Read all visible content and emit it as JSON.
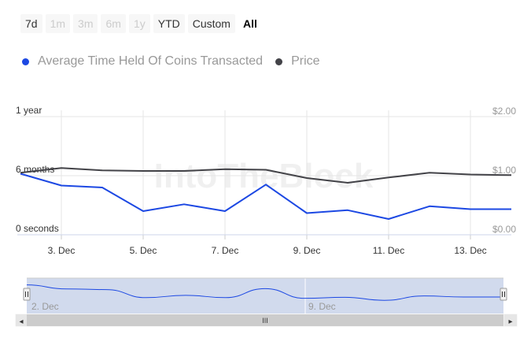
{
  "range_buttons": [
    {
      "label": "7d",
      "state": "enabled"
    },
    {
      "label": "1m",
      "state": "disabled"
    },
    {
      "label": "3m",
      "state": "disabled"
    },
    {
      "label": "6m",
      "state": "disabled"
    },
    {
      "label": "1y",
      "state": "disabled"
    },
    {
      "label": "YTD",
      "state": "enabled"
    },
    {
      "label": "Custom",
      "state": "enabled"
    },
    {
      "label": "All",
      "state": "active"
    }
  ],
  "watermark": "IntoTheBlock",
  "colors": {
    "series_blue": "#1c48e3",
    "series_dark": "#434348",
    "grid": "#e6e6e6",
    "navigator_mask": "rgba(102,133,194,0.3)"
  },
  "chart_data": {
    "type": "line",
    "title": "",
    "grid": true,
    "legend_position": "top-left",
    "x": [
      "2 Dec",
      "3 Dec",
      "4 Dec",
      "5 Dec",
      "6 Dec",
      "7 Dec",
      "8 Dec",
      "9 Dec",
      "10 Dec",
      "11 Dec",
      "12 Dec",
      "13 Dec",
      "14 Dec"
    ],
    "x_tick_labels": [
      "3. Dec",
      "5. Dec",
      "7. Dec",
      "9. Dec",
      "11. Dec",
      "13. Dec"
    ],
    "y_left_ticks": [
      "0 seconds",
      "6 months",
      "1 year"
    ],
    "y_left_range_months": [
      0,
      12
    ],
    "y_right_ticks": [
      "$0.00",
      "$1.00",
      "$2.00"
    ],
    "y_right_range_usd": [
      0,
      2
    ],
    "series": [
      {
        "name": "Average Time Held Of Coins Transacted",
        "axis": "left",
        "unit": "months",
        "values": [
          6.2,
          5.0,
          4.8,
          2.4,
          3.1,
          2.4,
          5.1,
          2.2,
          2.5,
          1.6,
          2.9,
          2.6,
          2.6
        ]
      },
      {
        "name": "Price",
        "axis": "right",
        "unit": "USD",
        "values": [
          1.05,
          1.13,
          1.09,
          1.08,
          1.08,
          1.11,
          1.1,
          0.96,
          0.88,
          0.97,
          1.05,
          1.02,
          1.01
        ]
      }
    ]
  },
  "navigator": {
    "date_labels": [
      "2. Dec",
      "9. Dec"
    ],
    "scroll_center_glyph": "III",
    "left_arrow_glyph": "◂",
    "right_arrow_glyph": "▸",
    "selection": [
      0,
      1
    ]
  }
}
